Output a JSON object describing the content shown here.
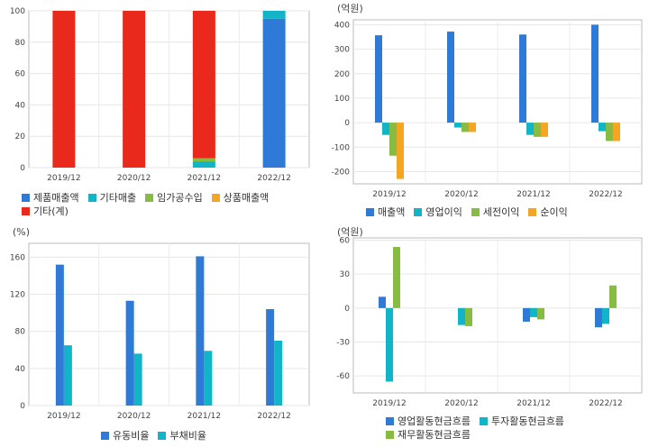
{
  "chart_data": [
    {
      "id": "sales-composition",
      "type": "bar",
      "stacked": true,
      "unit": "",
      "categories": [
        "2019/12",
        "2020/12",
        "2021/12",
        "2022/12"
      ],
      "ylim": [
        0,
        100
      ],
      "yticks": [
        0,
        20,
        40,
        60,
        80,
        100
      ],
      "series": [
        {
          "name": "제품매출액",
          "color": "#2f7ad6",
          "values": [
            0,
            0,
            0,
            95
          ]
        },
        {
          "name": "기타매출",
          "color": "#12b5c8",
          "values": [
            0,
            0,
            4,
            5
          ]
        },
        {
          "name": "임가공수입",
          "color": "#86bc42",
          "values": [
            0,
            0,
            2,
            0
          ]
        },
        {
          "name": "상품매출액",
          "color": "#f4a623",
          "values": [
            0,
            0,
            0,
            0
          ]
        },
        {
          "name": "기타(계)",
          "color": "#e8291c",
          "values": [
            100,
            100,
            94,
            0
          ]
        }
      ],
      "legend_rows": [
        [
          0,
          1,
          2,
          3
        ],
        [
          4
        ]
      ],
      "grid": true
    },
    {
      "id": "profit",
      "type": "bar",
      "unit": "(억원)",
      "categories": [
        "2019/12",
        "2020/12",
        "2021/12",
        "2022/12"
      ],
      "ylim": [
        -250,
        420
      ],
      "yticks": [
        -200,
        -100,
        0,
        100,
        200,
        300,
        400
      ],
      "series": [
        {
          "name": "매출액",
          "color": "#2f7ad6",
          "values": [
            357,
            372,
            360,
            400
          ]
        },
        {
          "name": "영업이익",
          "color": "#12b5c8",
          "values": [
            -50,
            -20,
            -50,
            -35
          ]
        },
        {
          "name": "세전이익",
          "color": "#86bc42",
          "values": [
            -135,
            -38,
            -58,
            -75
          ]
        },
        {
          "name": "순이익",
          "color": "#f4a623",
          "values": [
            -230,
            -38,
            -58,
            -75
          ]
        }
      ],
      "legend_rows": [
        [
          0,
          1,
          2,
          3
        ]
      ],
      "grid": true
    },
    {
      "id": "ratios",
      "type": "bar",
      "unit": "(%)",
      "categories": [
        "2019/12",
        "2020/12",
        "2021/12",
        "2022/12"
      ],
      "ylim": [
        0,
        175
      ],
      "yticks": [
        0,
        40,
        80,
        120,
        160
      ],
      "series": [
        {
          "name": "유동비율",
          "color": "#2f7ad6",
          "values": [
            152,
            113,
            161,
            104
          ]
        },
        {
          "name": "부채비율",
          "color": "#12b5c8",
          "values": [
            65,
            56,
            59,
            70
          ]
        }
      ],
      "legend_rows": [
        [
          0,
          1
        ]
      ],
      "grid": true
    },
    {
      "id": "cashflow",
      "type": "bar",
      "unit": "(억원)",
      "categories": [
        "2019/12",
        "2020/12",
        "2021/12",
        "2022/12"
      ],
      "ylim": [
        -75,
        62
      ],
      "yticks": [
        -60,
        -30,
        0,
        30,
        60
      ],
      "series": [
        {
          "name": "영업활동현금흐름",
          "color": "#2f7ad6",
          "values": [
            10,
            0,
            -12,
            -17
          ]
        },
        {
          "name": "투자활동현금흐름",
          "color": "#12b5c8",
          "values": [
            -65,
            -15,
            -8,
            -14
          ]
        },
        {
          "name": "재무활동현금흐름",
          "color": "#86bc42",
          "values": [
            54,
            -16,
            -10,
            20
          ]
        }
      ],
      "legend_rows": [
        [
          0,
          1
        ],
        [
          2
        ]
      ],
      "grid": true
    }
  ]
}
